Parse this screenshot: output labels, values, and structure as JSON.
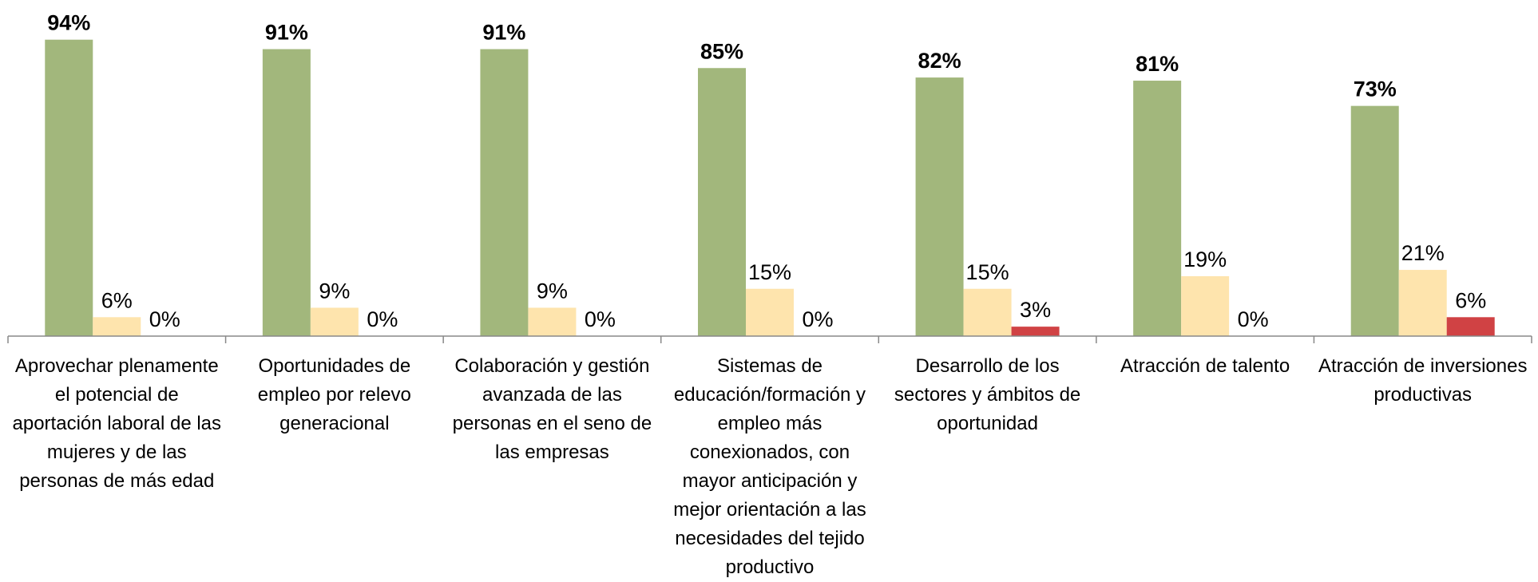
{
  "chart_data": {
    "type": "bar",
    "categories": [
      "Aprovechar plenamente el potencial de aportación laboral de las mujeres y de las personas de más edad",
      "Oportunidades de empleo por relevo generacional",
      "Colaboración y gestión avanzada de las personas en el seno de las empresas",
      "Sistemas de educación/formación y empleo más conexionados, con mayor anticipación y mejor orientación a las necesidades del tejido productivo",
      "Desarrollo de los sectores y ámbitos de oportunidad",
      "Atracción de talento",
      "Atracción de inversiones productivas"
    ],
    "series": [
      {
        "color": "#a2b77c",
        "values": [
          94,
          91,
          91,
          85,
          82,
          81,
          73
        ],
        "value_labels": [
          "94%",
          "91%",
          "91%",
          "85%",
          "82%",
          "81%",
          "73%"
        ]
      },
      {
        "color": "#fee4ad",
        "values": [
          6,
          9,
          9,
          15,
          15,
          19,
          21
        ],
        "value_labels": [
          "6%",
          "9%",
          "9%",
          "15%",
          "15%",
          "19%",
          "21%"
        ]
      },
      {
        "color": "#d04244",
        "values": [
          0,
          0,
          0,
          0,
          3,
          0,
          6
        ],
        "value_labels": [
          "0%",
          "0%",
          "0%",
          "0%",
          "3%",
          "0%",
          "6%"
        ]
      }
    ],
    "ylim": [
      0,
      100
    ]
  }
}
